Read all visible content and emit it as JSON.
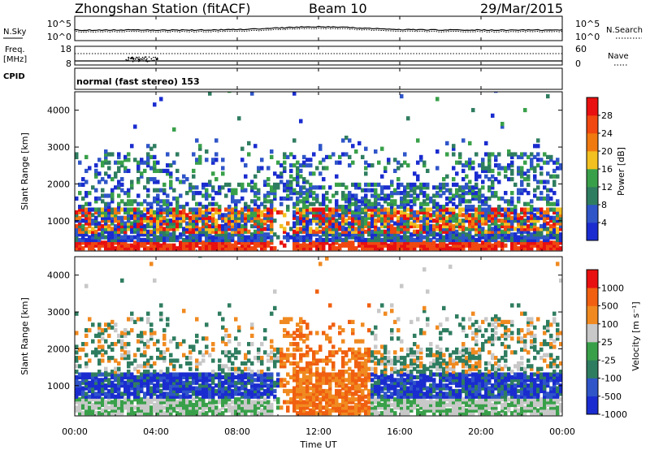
{
  "header": {
    "station": "Zhongshan Station (fitACF)",
    "beam": "Beam 10",
    "date": "29/Mar/2015"
  },
  "noise_panel": {
    "left_label": "N.Sky",
    "right_label": "N.Search",
    "left_ticks": [
      "10^5",
      "10^0"
    ],
    "right_ticks": [
      "10^5",
      "10^0"
    ]
  },
  "freq_panel": {
    "left_label_1": "Freq.",
    "left_label_2": "[MHz]",
    "right_label": "Nave",
    "left_ticks": [
      "18",
      "8"
    ],
    "right_ticks": [
      "60",
      "0"
    ]
  },
  "cpid_panel": {
    "label": "CPID",
    "text": "normal (fast stereo) 153"
  },
  "chart_data": [
    {
      "type": "heatmap",
      "quantity": "Power",
      "ylabel": "Slant Range [km]",
      "ylim": [
        180,
        4500
      ],
      "yticks": [
        "1000",
        "2000",
        "3000",
        "4000"
      ],
      "colorbar_label": "Power [dB]",
      "colorbar_ticks": [
        "4",
        "8",
        "12",
        "16",
        "20",
        "24",
        "28"
      ],
      "colorbar_range": [
        0,
        32
      ],
      "colors": [
        "#1a2ccf",
        "#2f55c8",
        "#2f7d60",
        "#39a04a",
        "#f2c020",
        "#f07a10",
        "#f04810",
        "#e81010"
      ]
    },
    {
      "type": "heatmap",
      "quantity": "Velocity",
      "ylabel": "Slant Range [km]",
      "ylim": [
        180,
        4500
      ],
      "yticks": [
        "1000",
        "2000",
        "3000",
        "4000"
      ],
      "colorbar_label": "Velocity [m s⁻¹]",
      "colorbar_ticks": [
        "1000",
        "500",
        "100",
        "25",
        "-25",
        "-100",
        "-500",
        "-1000"
      ],
      "colors": [
        "#1a2ccf",
        "#2f55c8",
        "#2f7d60",
        "#39a04a",
        "#c8c8c8",
        "#f08a20",
        "#f06010",
        "#e81010"
      ]
    }
  ],
  "x_axis": {
    "ticks": [
      "00:00",
      "04:00",
      "08:00",
      "12:00",
      "16:00",
      "20:00",
      "00:00"
    ],
    "label": "Time UT"
  }
}
